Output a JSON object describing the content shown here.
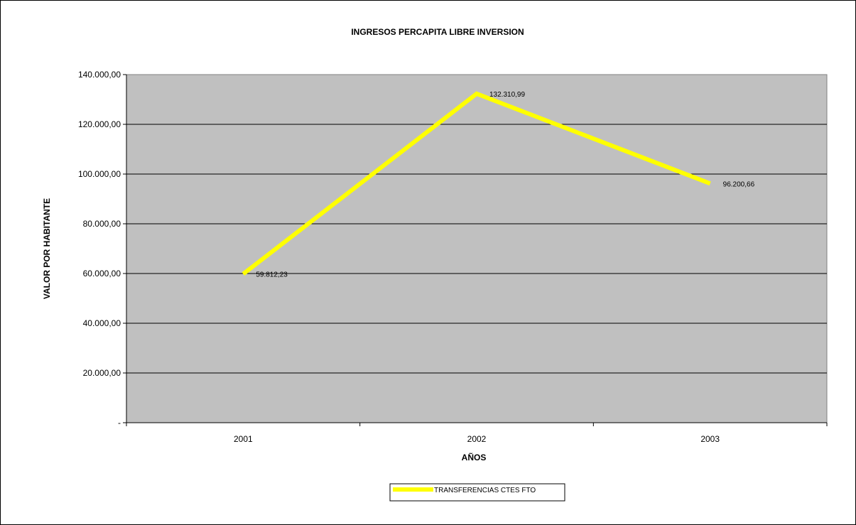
{
  "chart_data": {
    "type": "line",
    "title": "INGRESOS PERCAPITA LIBRE INVERSION",
    "xlabel": "AÑOS",
    "ylabel": "VALOR POR HABITANTE",
    "categories": [
      "2001",
      "2002",
      "2003"
    ],
    "ylim": [
      0,
      140000
    ],
    "yticks": [
      {
        "value": 0,
        "label": "-"
      },
      {
        "value": 20000,
        "label": "20.000,00"
      },
      {
        "value": 40000,
        "label": "40.000,00"
      },
      {
        "value": 60000,
        "label": "60.000,00"
      },
      {
        "value": 80000,
        "label": "80.000,00"
      },
      {
        "value": 100000,
        "label": "100.000,00"
      },
      {
        "value": 120000,
        "label": "120.000,00"
      },
      {
        "value": 140000,
        "label": "140.000,00"
      }
    ],
    "series": [
      {
        "name": "TRANSFERENCIAS CTES FTO",
        "color": "#ffff00",
        "values": [
          59812.23,
          132310.99,
          96200.66
        ],
        "data_labels": [
          "59.812,23",
          "132.310,99",
          "96.200,66"
        ]
      }
    ],
    "grid": true,
    "plot_background": "#c0c0c0",
    "legend_position": "bottom"
  }
}
